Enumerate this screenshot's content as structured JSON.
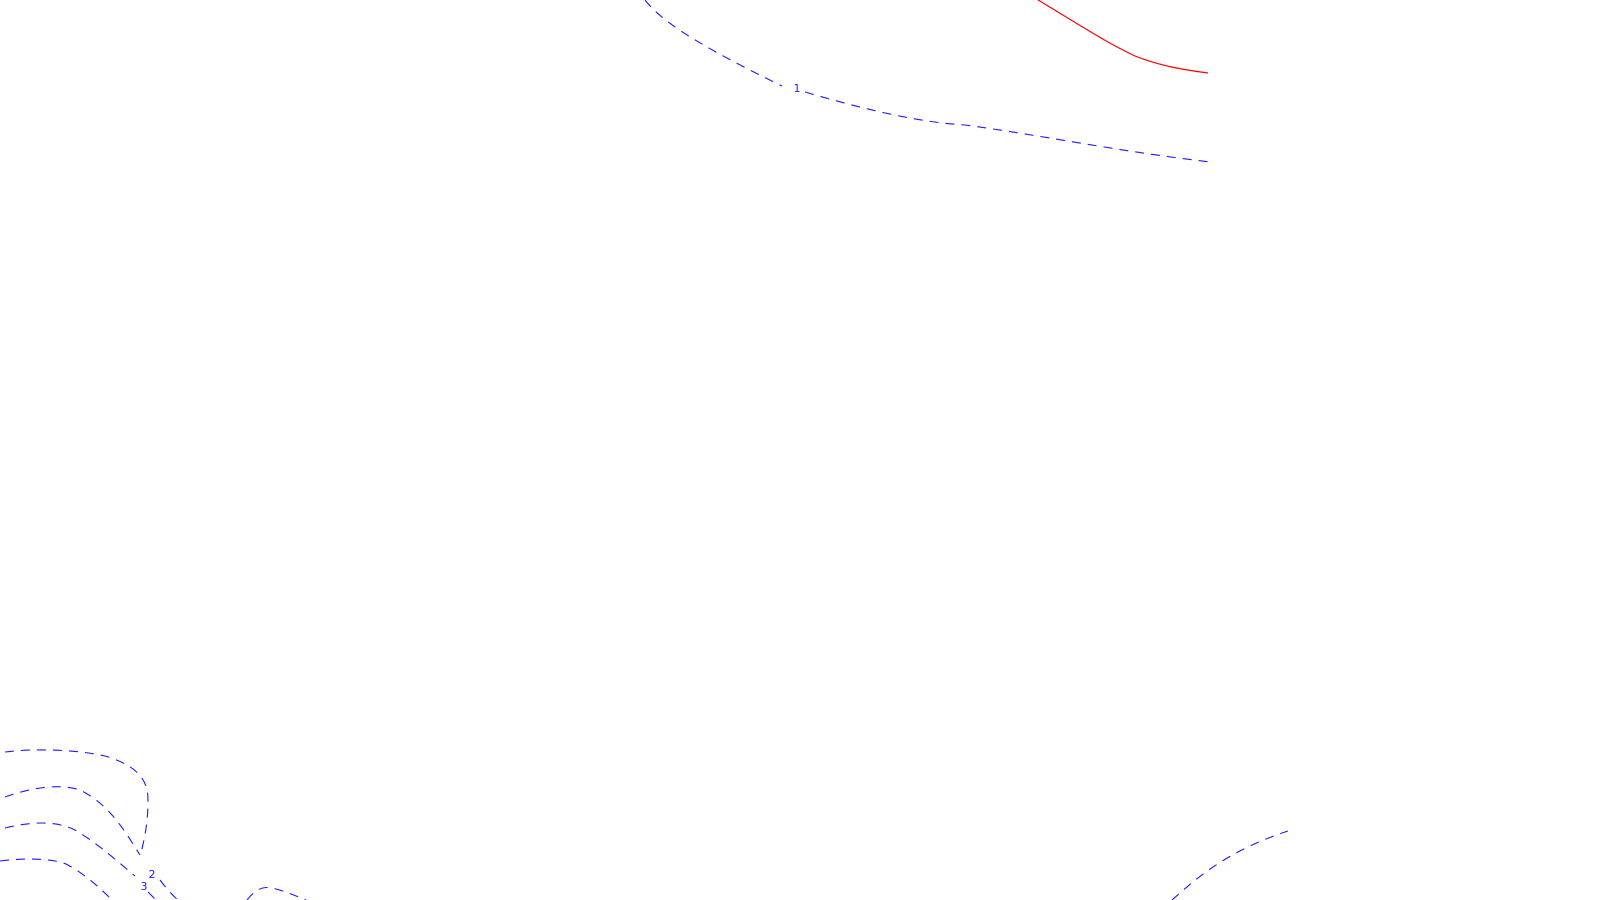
{
  "map": {
    "colors": {
      "background": "#ffffff",
      "negative_contour": "#1a1aff",
      "positive_contour": "#ff0000"
    },
    "contour_labels": [
      {
        "id": "contour-label-1",
        "text": "1"
      },
      {
        "id": "contour-label-2",
        "text": "2"
      },
      {
        "id": "contour-label-3",
        "text": "3"
      }
    ]
  }
}
